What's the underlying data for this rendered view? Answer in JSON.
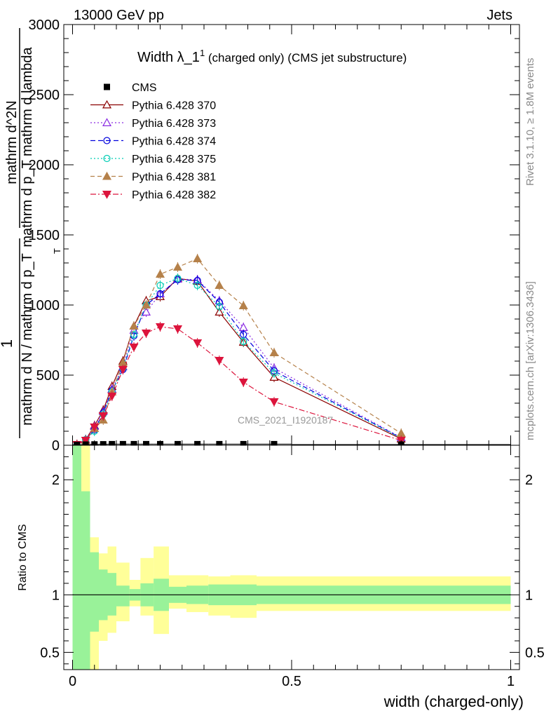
{
  "header": {
    "left": "13000 GeV pp",
    "right": "Jets"
  },
  "side": {
    "rivet": "Rivet 3.1.10, ≥ 1.8M events",
    "mcplots": "mcplots.cern.ch [arXiv:1306.3436]"
  },
  "chart_data": {
    "type": "line",
    "title": {
      "main": "Width λ_1",
      "sup": "1",
      "suffix": " (charged only) (CMS jet substructure)"
    },
    "watermark": "CMS_2021_I1920187",
    "xlabel": "width (charged-only)",
    "ylabel_upper": {
      "frac1_num": "1",
      "frac1_den": "mathrm d N / mathrm d p_T",
      "frac2_num": "mathrm d^2N",
      "frac2_den": "mathrm d p_T mathrm d lambda",
      "den_sub": "T"
    },
    "ylabel_ratio": "Ratio to CMS",
    "xlim": [
      -0.02,
      1.02
    ],
    "ylim": [
      0,
      3000
    ],
    "ratio_ylim": [
      0.35,
      2.3
    ],
    "xticks": [
      0,
      0.5,
      1
    ],
    "xtick_labels": [
      "0",
      "0.5",
      "1"
    ],
    "yticks": [
      0,
      500,
      1000,
      1500,
      2000,
      2500,
      3000
    ],
    "ytick_labels": [
      "0",
      "500",
      "1000",
      "1500",
      "2000",
      "2500",
      "3000"
    ],
    "ratio_yticks": [
      0.5,
      1,
      2
    ],
    "ratio_ytick_labels": [
      "0.5",
      "1",
      "2"
    ],
    "x": [
      0.01,
      0.03,
      0.05,
      0.07,
      0.09,
      0.115,
      0.14,
      0.168,
      0.2,
      0.24,
      0.285,
      0.335,
      0.39,
      0.46,
      0.75
    ],
    "bin_edges": [
      0,
      0.02,
      0.04,
      0.06,
      0.08,
      0.1,
      0.13,
      0.155,
      0.185,
      0.22,
      0.26,
      0.31,
      0.36,
      0.42,
      0.5,
      1.0
    ],
    "cms": {
      "name": "CMS",
      "values": [
        3,
        5,
        6,
        7,
        8,
        8,
        8,
        8,
        8,
        8,
        8,
        8,
        8,
        8,
        5
      ]
    },
    "series": [
      {
        "name": "Pythia 6.428 370",
        "color": "#8b0000",
        "dash": "",
        "marker": "tri-up-open",
        "values": [
          5,
          40,
          140,
          250,
          420,
          600,
          850,
          1030,
          1060,
          1190,
          1170,
          950,
          735,
          485,
          45
        ]
      },
      {
        "name": "Pythia 6.428 373",
        "color": "#8a2be2",
        "dash": "2,3",
        "marker": "tri-up-open",
        "values": [
          5,
          40,
          135,
          240,
          400,
          560,
          820,
          950,
          1080,
          1185,
          1180,
          1030,
          840,
          550,
          55
        ]
      },
      {
        "name": "Pythia 6.428 374",
        "color": "#0000dd",
        "dash": "7,4",
        "marker": "circle-open",
        "values": [
          5,
          40,
          110,
          230,
          390,
          540,
          780,
          1000,
          1080,
          1180,
          1175,
          1020,
          790,
          530,
          52
        ]
      },
      {
        "name": "Pythia 6.428 375",
        "color": "#00cdb4",
        "dash": "2,3",
        "marker": "circle-open",
        "values": [
          5,
          40,
          100,
          220,
          380,
          550,
          790,
          1000,
          1140,
          1190,
          1140,
          990,
          740,
          515,
          50
        ]
      },
      {
        "name": "Pythia 6.428 381",
        "color": "#b5814a",
        "dash": "6,4",
        "marker": "tri-up-filled",
        "values": [
          5,
          35,
          120,
          180,
          380,
          590,
          850,
          1000,
          1220,
          1270,
          1330,
          1140,
          995,
          660,
          85
        ]
      },
      {
        "name": "Pythia 6.428 382",
        "color": "#dc143c",
        "dash": "8,3,2,3",
        "marker": "tri-down-filled",
        "values": [
          5,
          35,
          130,
          210,
          350,
          540,
          700,
          800,
          845,
          830,
          730,
          605,
          450,
          310,
          35
        ]
      }
    ],
    "ratio_bands": {
      "green_lo": [
        0.1,
        0.1,
        0.68,
        0.78,
        0.82,
        0.9,
        0.95,
        0.9,
        0.86,
        0.93,
        0.92,
        0.91,
        0.91,
        0.92,
        0.92
      ],
      "green_hi": [
        2.3,
        1.9,
        1.37,
        1.22,
        1.19,
        1.08,
        1.05,
        1.1,
        1.14,
        1.07,
        1.08,
        1.09,
        1.09,
        1.08,
        1.08
      ],
      "yellow_lo": [
        0.1,
        0.1,
        0.35,
        0.6,
        0.67,
        0.77,
        0.9,
        0.82,
        0.66,
        0.88,
        0.85,
        0.82,
        0.8,
        0.86,
        0.86
      ],
      "yellow_hi": [
        2.3,
        2.3,
        1.5,
        1.36,
        1.42,
        1.28,
        1.13,
        1.32,
        1.42,
        1.17,
        1.17,
        1.16,
        1.17,
        1.16,
        1.16
      ]
    }
  }
}
